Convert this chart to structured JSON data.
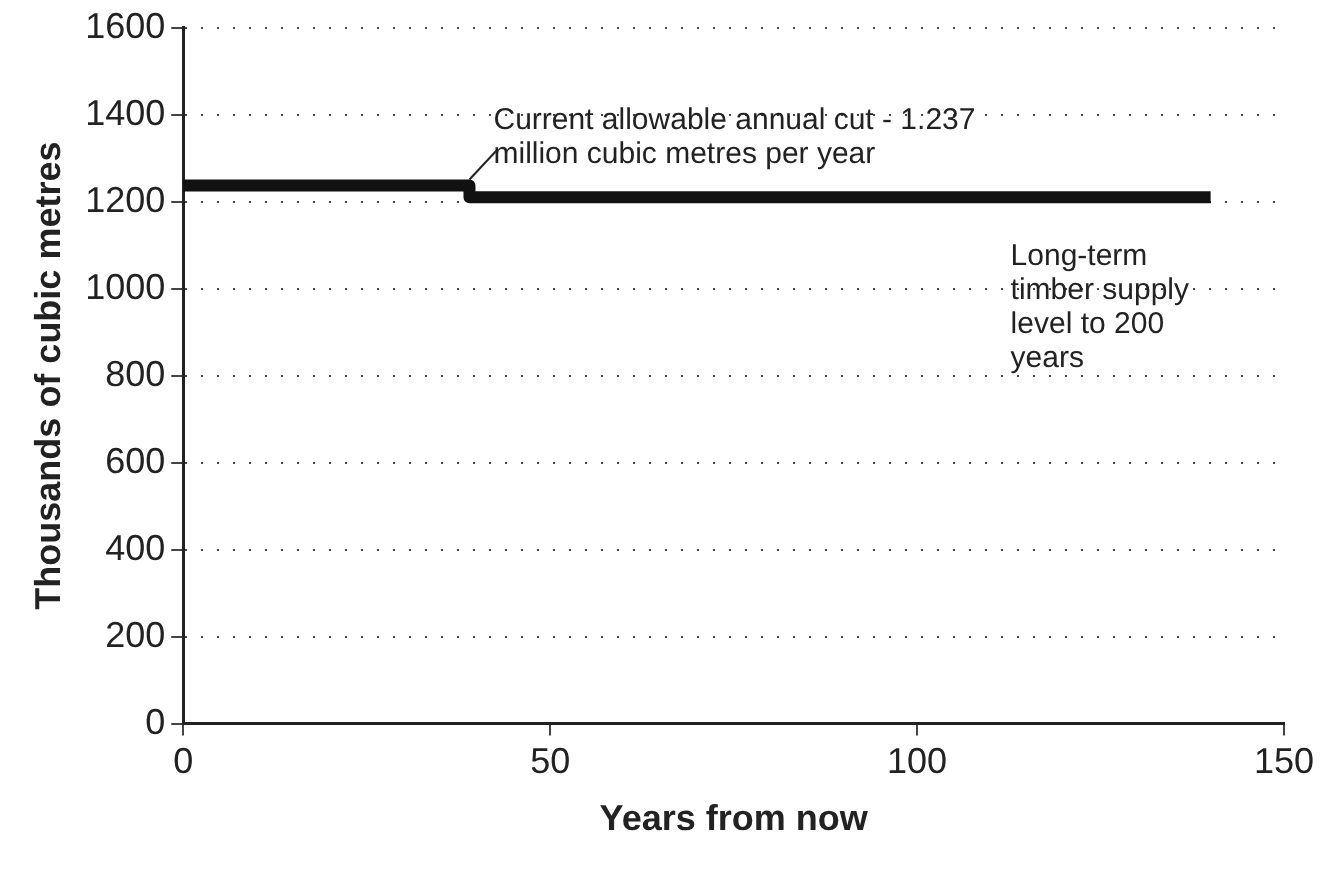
{
  "chart_data": {
    "type": "step",
    "xlabel": "Years from now",
    "ylabel": "Thousands of cubic metres",
    "x": [
      0,
      39,
      140
    ],
    "series": [
      {
        "color": "#111111",
        "values": [
          1237,
          1210,
          1210
        ]
      }
    ],
    "xlim": [
      0,
      150
    ],
    "xticks": [
      0,
      50,
      100,
      150
    ],
    "ylim": [
      0,
      1600
    ],
    "yticks": [
      0,
      200,
      400,
      600,
      800,
      1000,
      1200,
      1400,
      1600
    ],
    "grid": "y",
    "legend": false,
    "marker": "none",
    "line_style": "solid",
    "annotations": [
      {
        "text": "Current allowable annual cut - 1.237 million cubic metres per year",
        "x": 39,
        "y": 1237
      },
      {
        "text": "Long-term timber supply level to 200 years",
        "x": 140,
        "y": 1210
      }
    ]
  }
}
